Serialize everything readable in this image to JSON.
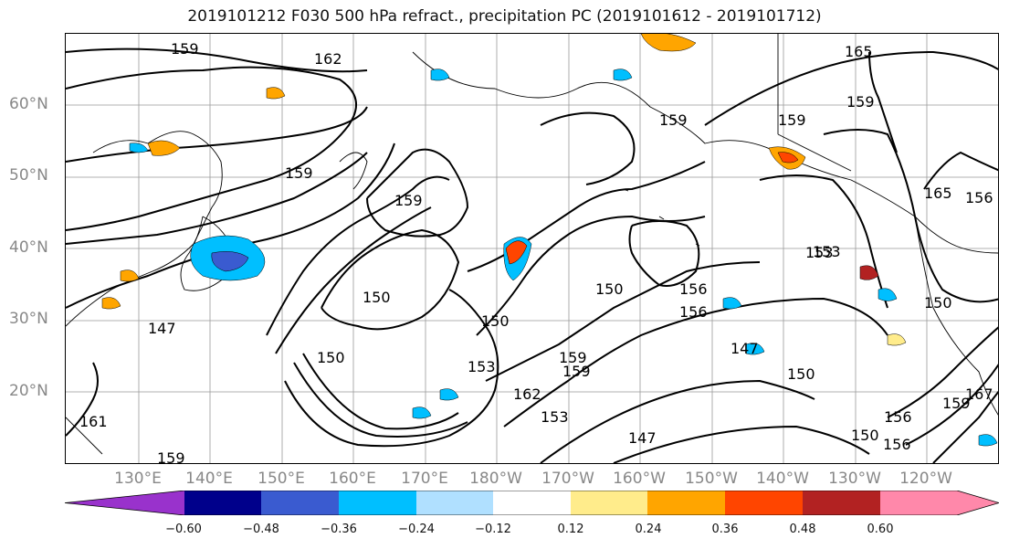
{
  "title": "2019101212 F030 500 hPa refract., precipitation PC (2019101612 - 2019101712)",
  "lat_labels": [
    "60°N",
    "50°N",
    "40°N",
    "30°N",
    "20°N"
  ],
  "lon_labels": [
    "130°E",
    "140°E",
    "150°E",
    "160°E",
    "170°E",
    "180°W",
    "170°W",
    "160°W",
    "150°W",
    "140°W",
    "130°W",
    "120°W"
  ],
  "contour_labels": [
    "159",
    "162",
    "165",
    "159",
    "159",
    "150",
    "150",
    "147",
    "150",
    "153",
    "150",
    "159",
    "156",
    "153",
    "147",
    "150",
    "162",
    "159",
    "153",
    "147",
    "156",
    "159",
    "159",
    "156",
    "165",
    "159",
    "153",
    "150",
    "156",
    "156",
    "159",
    "159",
    "167",
    "150",
    "161"
  ],
  "colorbar": {
    "ticks": [
      "−0.60",
      "−0.48",
      "−0.36",
      "−0.24",
      "−0.12",
      "0.12",
      "0.24",
      "0.36",
      "0.48",
      "0.60"
    ],
    "colors": [
      "#9932cc",
      "#00008b",
      "#3a5bd0",
      "#00bfff",
      "#b0e0ff",
      "#ffffff",
      "#ffec8b",
      "#ffa500",
      "#ff4500",
      "#b22222",
      "#ff88aa"
    ]
  }
}
